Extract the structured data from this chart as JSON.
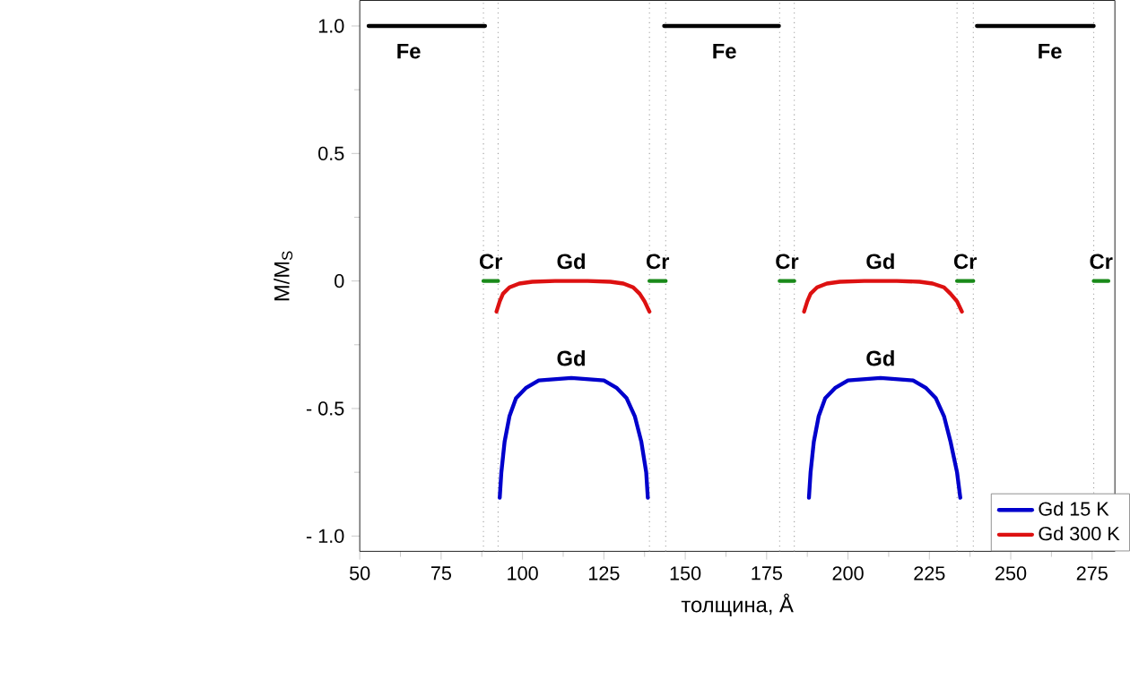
{
  "chart_data": {
    "type": "line",
    "xlabel": "толщина, Å",
    "ylabel": "M/M$_{S}$",
    "xlim": [
      50,
      282
    ],
    "ylim": [
      -1.06,
      1.1
    ],
    "xticks": [
      50,
      75,
      100,
      125,
      150,
      175,
      200,
      225,
      250,
      275
    ],
    "yticks": [
      {
        "value": -1.0,
        "label": "- 1.0"
      },
      {
        "value": -0.5,
        "label": "- 0.5"
      },
      0,
      {
        "value": 0.5,
        "label": "0.5"
      },
      {
        "value": 1.0,
        "label": "1.0"
      }
    ],
    "legend": "bottom right",
    "grid": false,
    "marker": "none",
    "series": [
      {
        "color": "#000000",
        "x": [
          52.7,
          88.5,
          null,
          143.5,
          178.8,
          null,
          239.6,
          275.5
        ],
        "values": [
          1,
          1,
          null,
          1,
          1,
          null,
          1,
          1
        ]
      },
      {
        "color": "#1a8a1a",
        "x": [
          88,
          92.5,
          null,
          139,
          144,
          null,
          179,
          183.5,
          null,
          233.5,
          238.5,
          null,
          275.5,
          280
        ],
        "values": [
          0,
          0,
          null,
          0,
          0,
          null,
          0,
          0,
          null,
          0,
          0,
          null,
          0,
          0
        ]
      },
      {
        "name": "Gd 15 K",
        "color": "#0000cc",
        "x": [
          93,
          93.5,
          94.5,
          96,
          98,
          101,
          105,
          115,
          125,
          129,
          132,
          134.5,
          136.5,
          138,
          138.5,
          null,
          188,
          188.5,
          189.5,
          191,
          193,
          196,
          200,
          210,
          220,
          224,
          227,
          229.5,
          231.5,
          233.5,
          234.5
        ],
        "values": [
          -0.85,
          -0.75,
          -0.63,
          -0.53,
          -0.46,
          -0.42,
          -0.39,
          -0.38,
          -0.39,
          -0.42,
          -0.46,
          -0.53,
          -0.63,
          -0.75,
          -0.85,
          null,
          -0.85,
          -0.75,
          -0.63,
          -0.53,
          -0.46,
          -0.42,
          -0.39,
          -0.38,
          -0.39,
          -0.42,
          -0.46,
          -0.53,
          -0.63,
          -0.75,
          -0.85
        ]
      },
      {
        "name": "Gd 300 K",
        "color": "#dd1111",
        "x": [
          92,
          93,
          94,
          96,
          99,
          103,
          110,
          120,
          127,
          131,
          134,
          136,
          137.5,
          139,
          null,
          186.5,
          187.5,
          188.5,
          190.5,
          193.5,
          197.5,
          205,
          215,
          222,
          226,
          229.5,
          231.5,
          233.5,
          235
        ],
        "values": [
          -0.12,
          -0.08,
          -0.05,
          -0.025,
          -0.01,
          -0.003,
          0,
          0,
          -0.003,
          -0.01,
          -0.025,
          -0.05,
          -0.08,
          -0.12,
          null,
          -0.12,
          -0.08,
          -0.05,
          -0.025,
          -0.01,
          -0.003,
          0,
          0,
          -0.003,
          -0.01,
          -0.025,
          -0.05,
          -0.08,
          -0.12
        ]
      }
    ],
    "ref_lines": [
      {
        "axis": "x",
        "value": 88,
        "color": "#999999",
        "line_style": "dotted"
      },
      {
        "axis": "x",
        "value": 92.5,
        "color": "#999999",
        "line_style": "dotted"
      },
      {
        "axis": "x",
        "value": 139,
        "color": "#999999",
        "line_style": "dotted"
      },
      {
        "axis": "x",
        "value": 144,
        "color": "#999999",
        "line_style": "dotted"
      },
      {
        "axis": "x",
        "value": 179,
        "color": "#999999",
        "line_style": "dotted"
      },
      {
        "axis": "x",
        "value": 183.5,
        "color": "#999999",
        "line_style": "dotted"
      },
      {
        "axis": "x",
        "value": 233.5,
        "color": "#999999",
        "line_style": "dotted"
      },
      {
        "axis": "x",
        "value": 238.5,
        "color": "#999999",
        "line_style": "dotted"
      },
      {
        "axis": "x",
        "value": 275.5,
        "color": "#999999",
        "line_style": "dotted"
      }
    ],
    "annotations": [
      {
        "text": "Fe",
        "x": 65,
        "y": 1
      },
      {
        "text": "Fe",
        "x": 162,
        "y": 1
      },
      {
        "text": "Fe",
        "x": 262,
        "y": 1
      },
      {
        "text": "Cr",
        "x": 90.25,
        "y": 0
      },
      {
        "text": "Cr",
        "x": 141.5,
        "y": 0
      },
      {
        "text": "Cr",
        "x": 181.25,
        "y": 0
      },
      {
        "text": "Cr",
        "x": 236,
        "y": 0
      },
      {
        "text": "Cr",
        "x": 277.75,
        "y": 0
      },
      {
        "text": "Gd",
        "x": 115,
        "y": 0
      },
      {
        "text": "Gd",
        "x": 115,
        "y": -0.38
      },
      {
        "text": "Gd",
        "x": 210,
        "y": 0
      },
      {
        "text": "Gd",
        "x": 210,
        "y": -0.38
      }
    ]
  }
}
